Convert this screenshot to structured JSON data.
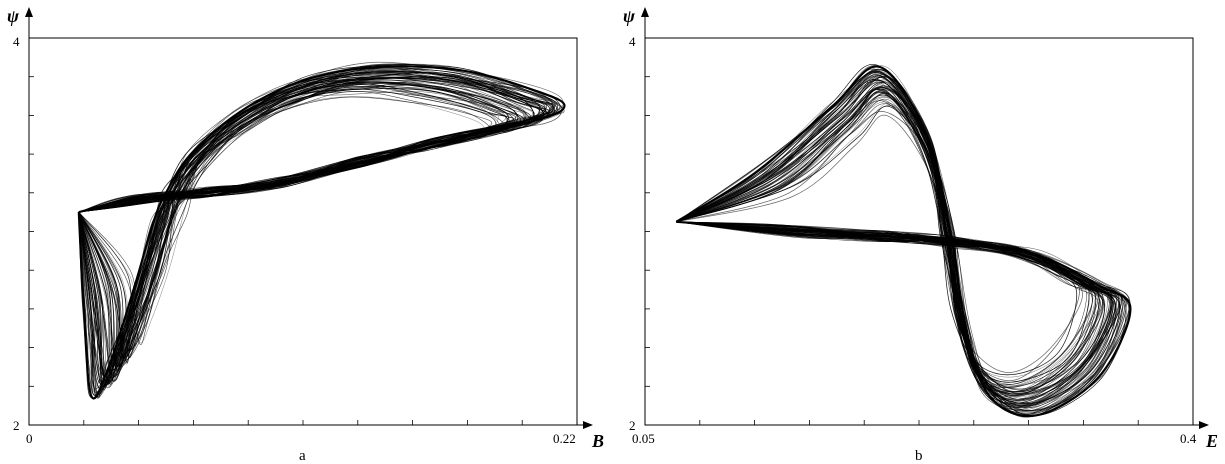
{
  "chart_data": [
    {
      "type": "line",
      "panel_label": "a",
      "xlabel": "B",
      "ylabel": "ψ",
      "xlim": [
        0,
        0.22
      ],
      "ylim": [
        2,
        4
      ],
      "x_tick_labels": [
        "0",
        "0.22"
      ],
      "y_tick_labels": [
        "2",
        "4"
      ],
      "x_minor_ticks": [
        0.022,
        0.044,
        0.066,
        0.088,
        0.11,
        0.132,
        0.154,
        0.176,
        0.198
      ],
      "y_minor_ticks": [
        2.2,
        2.4,
        2.6,
        2.8,
        3.0,
        3.2,
        3.4,
        3.6,
        3.8
      ],
      "grid": false,
      "series": [
        {
          "style": "dense chaotic attractor trajectory",
          "values": [
            [
              0.02,
              3.1
            ],
            [
              0.022,
              2.6
            ],
            [
              0.025,
              2.15
            ],
            [
              0.032,
              2.3
            ],
            [
              0.042,
              2.7
            ],
            [
              0.05,
              3.05
            ],
            [
              0.055,
              3.2
            ],
            [
              0.065,
              3.4
            ],
            [
              0.085,
              3.62
            ],
            [
              0.11,
              3.78
            ],
            [
              0.14,
              3.85
            ],
            [
              0.175,
              3.83
            ],
            [
              0.205,
              3.72
            ],
            [
              0.215,
              3.65
            ],
            [
              0.205,
              3.58
            ],
            [
              0.17,
              3.48
            ],
            [
              0.14,
              3.38
            ],
            [
              0.1,
              3.25
            ],
            [
              0.07,
              3.2
            ],
            [
              0.04,
              3.16
            ],
            [
              0.02,
              3.1
            ]
          ]
        }
      ]
    },
    {
      "type": "line",
      "panel_label": "b",
      "xlabel": "E",
      "ylabel": "ψ",
      "xlim": [
        0.05,
        0.4
      ],
      "ylim": [
        2,
        4
      ],
      "x_tick_labels": [
        "0.05",
        "0.4"
      ],
      "y_tick_labels": [
        "2",
        "4"
      ],
      "x_minor_ticks": [
        0.085,
        0.12,
        0.155,
        0.19,
        0.225,
        0.26,
        0.295,
        0.33,
        0.365
      ],
      "y_minor_ticks": [
        2.2,
        2.4,
        2.6,
        2.8,
        3.0,
        3.2,
        3.4,
        3.6,
        3.8
      ],
      "grid": false,
      "series": [
        {
          "style": "dense chaotic attractor trajectory",
          "values": [
            [
              0.07,
              3.05
            ],
            [
              0.12,
              3.3
            ],
            [
              0.17,
              3.65
            ],
            [
              0.2,
              3.85
            ],
            [
              0.23,
              3.5
            ],
            [
              0.245,
              3.0
            ],
            [
              0.255,
              2.5
            ],
            [
              0.27,
              2.15
            ],
            [
              0.3,
              2.05
            ],
            [
              0.34,
              2.25
            ],
            [
              0.36,
              2.6
            ],
            [
              0.34,
              2.72
            ],
            [
              0.3,
              2.88
            ],
            [
              0.25,
              2.95
            ],
            [
              0.2,
              2.98
            ],
            [
              0.14,
              3.01
            ],
            [
              0.07,
              3.05
            ]
          ]
        }
      ]
    }
  ]
}
